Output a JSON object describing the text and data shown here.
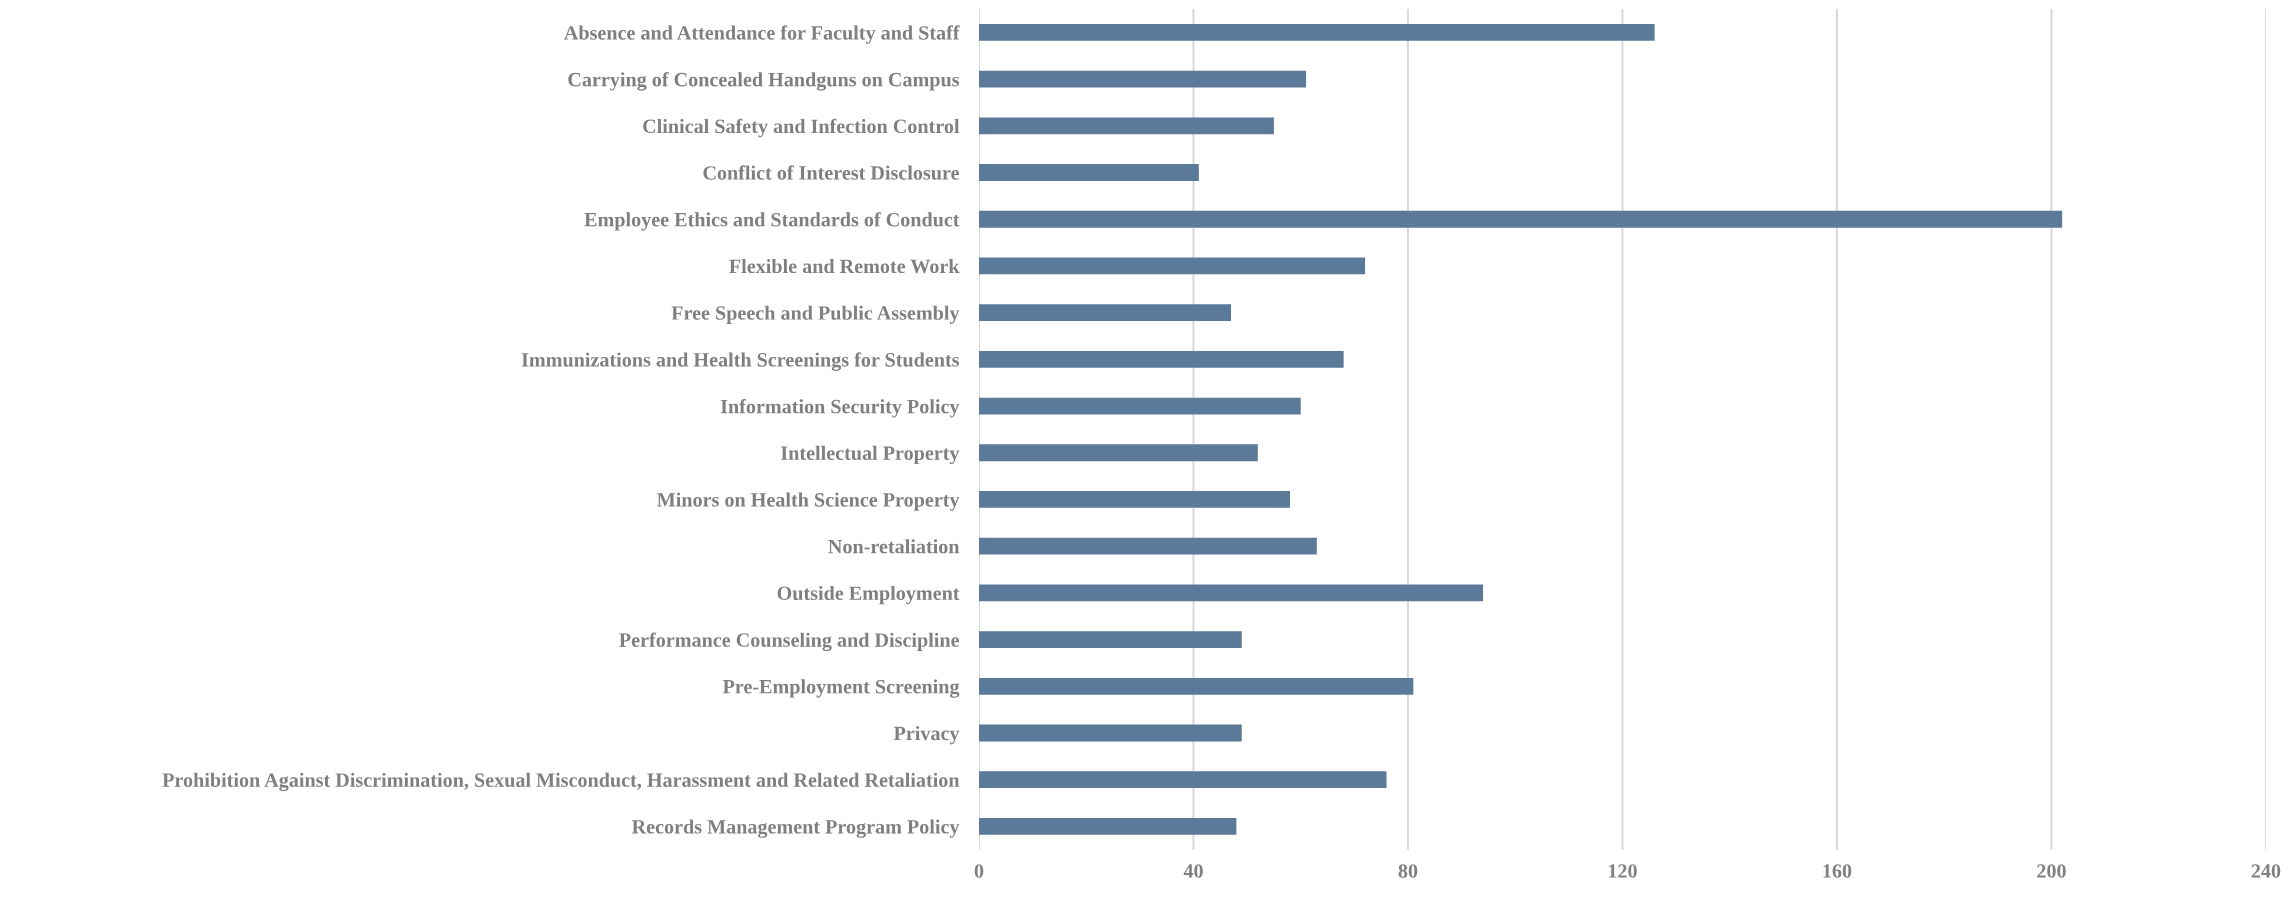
{
  "chart_data": {
    "type": "bar",
    "orientation": "horizontal",
    "categories": [
      "Absence and Attendance for Faculty and Staff",
      "Carrying of Concealed Handguns on Campus",
      "Clinical Safety and Infection Control",
      "Conflict of Interest Disclosure",
      "Employee Ethics and Standards of Conduct",
      "Flexible and Remote Work",
      "Free Speech and Public Assembly",
      "Immunizations and Health Screenings for Students",
      "Information Security Policy",
      "Intellectual Property",
      "Minors on Health Science Property",
      "Non-retaliation",
      "Outside Employment",
      "Performance Counseling and Discipline",
      "Pre-Employment Screening",
      "Privacy",
      "Prohibition Against Discrimination, Sexual Misconduct, Harassment and Related Retaliation",
      "Records Management Program Policy"
    ],
    "values": [
      126,
      61,
      55,
      41,
      202,
      72,
      47,
      68,
      60,
      52,
      58,
      63,
      94,
      49,
      81,
      49,
      76,
      48
    ],
    "color": "#5b7a99",
    "xlim": [
      0,
      240
    ],
    "xticks": [
      0,
      40,
      80,
      120,
      160,
      200,
      240
    ],
    "grid": "x",
    "legend": false
  }
}
